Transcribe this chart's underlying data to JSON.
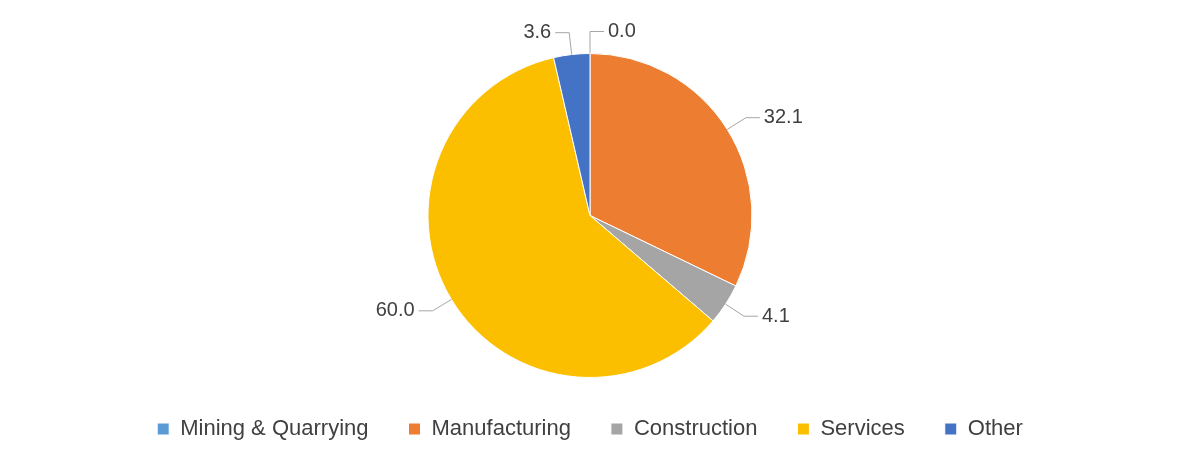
{
  "chart_data": {
    "type": "pie",
    "categories": [
      "Mining & Quarrying",
      "Manufacturing",
      "Construction",
      "Services",
      "Other"
    ],
    "values": [
      0.0,
      32.1,
      4.1,
      60.0,
      3.6
    ],
    "colors": [
      "#5b9bd5",
      "#ed7d31",
      "#a5a5a5",
      "#fbbf00",
      "#4472c4"
    ],
    "value_labels": [
      "0.0",
      "32.1",
      "4.1",
      "60.0",
      "3.6"
    ],
    "legend": "bottom"
  }
}
